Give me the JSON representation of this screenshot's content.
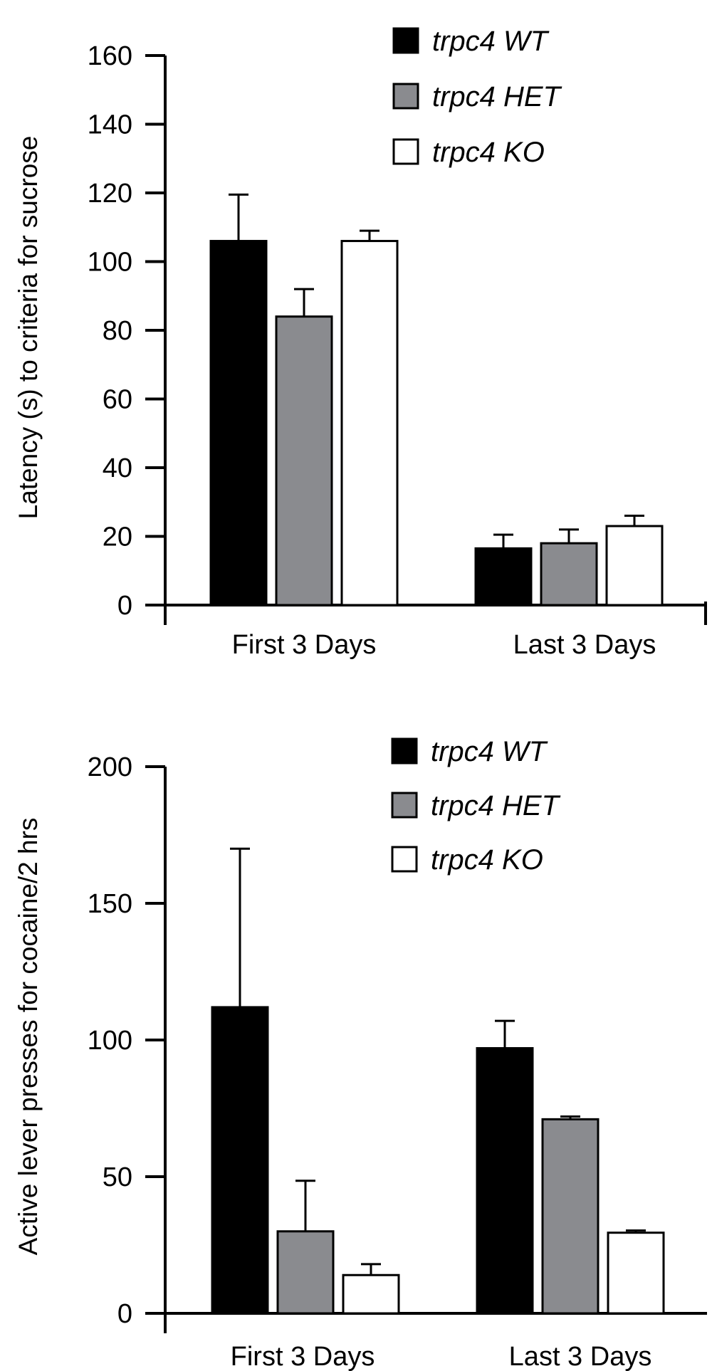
{
  "chart_data": [
    {
      "type": "bar",
      "title": "",
      "xlabel": "",
      "ylabel": "Latency  (s)  to criteria for sucrose",
      "ylim": [
        0,
        160
      ],
      "yticks": [
        0,
        20,
        40,
        60,
        80,
        100,
        120,
        140,
        160
      ],
      "categories": [
        "First 3 Days",
        "Last 3 Days"
      ],
      "series": [
        {
          "name": "trpc4 WT",
          "color": "#000000",
          "values": [
            106,
            16.5
          ],
          "errors": [
            13.5,
            4
          ]
        },
        {
          "name": "trpc4 HET",
          "color": "#8a8b8f",
          "values": [
            84,
            18
          ],
          "errors": [
            8,
            4
          ]
        },
        {
          "name": "trpc4 KO",
          "color": "#ffffff",
          "values": [
            106,
            23
          ],
          "errors": [
            3,
            3
          ]
        }
      ],
      "legend": "top-right"
    },
    {
      "type": "bar",
      "title": "",
      "xlabel": "",
      "ylabel": "Active lever presses for cocaine/2 hrs",
      "ylim": [
        0,
        200
      ],
      "yticks": [
        0,
        50,
        100,
        150,
        200
      ],
      "categories": [
        "First 3 Days",
        "Last 3 Days"
      ],
      "series": [
        {
          "name": "trpc4 WT",
          "color": "#000000",
          "values": [
            112,
            97
          ],
          "errors": [
            58,
            10
          ]
        },
        {
          "name": "trpc4 HET",
          "color": "#8a8b8f",
          "values": [
            30,
            71
          ],
          "errors": [
            18.5,
            1
          ]
        },
        {
          "name": "trpc4 KO",
          "color": "#ffffff",
          "values": [
            14,
            29.5
          ],
          "errors": [
            4,
            0.8
          ]
        }
      ],
      "legend": "top-right"
    }
  ]
}
